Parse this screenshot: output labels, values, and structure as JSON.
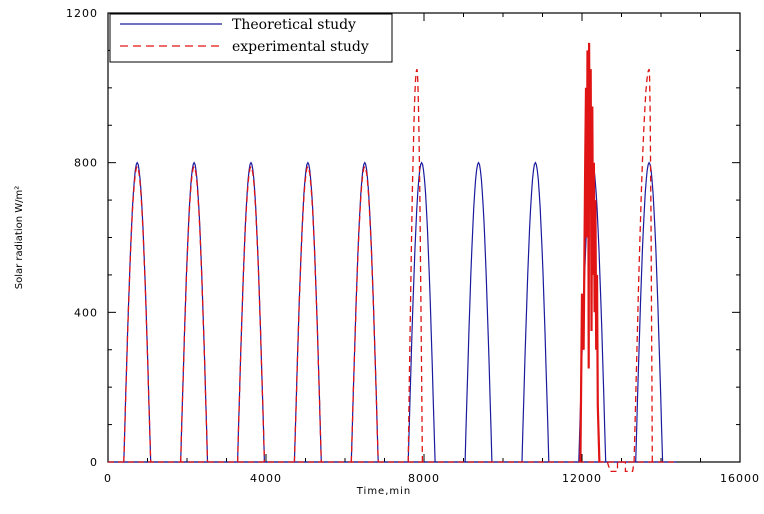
{
  "chart_data": {
    "type": "line",
    "title": "",
    "xlabel": "Time,min",
    "ylabel": "Solar radiation W/m²",
    "xlim": [
      0,
      16000
    ],
    "ylim": [
      0,
      1200
    ],
    "x_ticks": [
      0,
      4000,
      8000,
      12000,
      16000
    ],
    "y_ticks": [
      0,
      400,
      800,
      1200
    ],
    "x_tick_labels": [
      "0",
      "4000",
      "8000",
      "12000",
      "16000"
    ],
    "y_tick_labels": [
      "0",
      "400",
      "800",
      "1200"
    ],
    "grid": false,
    "legend_position": "top-left",
    "series": [
      {
        "name": "Theoretical study",
        "color": "#1a1a9e",
        "style": "solid",
        "pulses": [
          {
            "start": 400,
            "peak_x": 740,
            "end": 1080,
            "peak": 800
          },
          {
            "start": 1840,
            "peak_x": 2180,
            "end": 2520,
            "peak": 800
          },
          {
            "start": 3280,
            "peak_x": 3620,
            "end": 3960,
            "peak": 800
          },
          {
            "start": 4720,
            "peak_x": 5060,
            "end": 5400,
            "peak": 800
          },
          {
            "start": 6160,
            "peak_x": 6500,
            "end": 6840,
            "peak": 800
          },
          {
            "start": 7600,
            "peak_x": 7940,
            "end": 8280,
            "peak": 800
          },
          {
            "start": 9040,
            "peak_x": 9380,
            "end": 9720,
            "peak": 800
          },
          {
            "start": 10480,
            "peak_x": 10820,
            "end": 11160,
            "peak": 800
          },
          {
            "start": 11920,
            "peak_x": 12260,
            "end": 12600,
            "peak": 800
          },
          {
            "start": 13360,
            "peak_x": 13700,
            "end": 14040,
            "peak": 800
          }
        ]
      },
      {
        "name": "experimental study",
        "color": "#e01414",
        "style": "dashed",
        "pulses": [
          {
            "start": 400,
            "peak_x": 740,
            "end": 1080,
            "peak": 790
          },
          {
            "start": 1840,
            "peak_x": 2180,
            "end": 2520,
            "peak": 790
          },
          {
            "start": 3280,
            "peak_x": 3620,
            "end": 3960,
            "peak": 790
          },
          {
            "start": 4720,
            "peak_x": 5060,
            "end": 5400,
            "peak": 790
          },
          {
            "start": 6160,
            "peak_x": 6500,
            "end": 6840,
            "peak": 790
          },
          {
            "start": 7600,
            "peak_x": 7820,
            "end": 7960,
            "peak": 1050
          },
          {
            "start": 13320,
            "peak_x": 13700,
            "end": 13780,
            "peak": 1050
          }
        ],
        "segments": [
          [
            [
              11960,
              0
            ],
            [
              12000,
              450
            ],
            [
              12040,
              300
            ],
            [
              12080,
              800
            ],
            [
              12100,
              1000
            ],
            [
              12120,
              600
            ],
            [
              12140,
              1100
            ],
            [
              12160,
              900
            ],
            [
              12170,
              250
            ],
            [
              12180,
              1120
            ],
            [
              12200,
              700
            ],
            [
              12220,
              1050
            ],
            [
              12240,
              350
            ],
            [
              12260,
              950
            ],
            [
              12280,
              500
            ],
            [
              12300,
              800
            ],
            [
              12320,
              400
            ],
            [
              12340,
              700
            ],
            [
              12360,
              300
            ],
            [
              12380,
              500
            ],
            [
              12400,
              150
            ],
            [
              12440,
              0
            ]
          ],
          [
            [
              12640,
              0
            ],
            [
              12720,
              -25
            ],
            [
              12900,
              -25
            ],
            [
              12900,
              0
            ],
            [
              13100,
              0
            ],
            [
              13100,
              -25
            ],
            [
              13280,
              -25
            ],
            [
              13320,
              0
            ]
          ]
        ]
      }
    ]
  }
}
